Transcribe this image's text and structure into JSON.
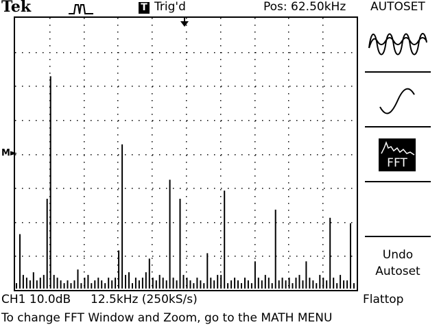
{
  "header": {
    "brand": "Tek",
    "trigger_icon": "T",
    "trigger_status": "Trig'd",
    "position": "Pos: 62.50kHz",
    "autoset_title": "AUTOSET"
  },
  "side_menu": {
    "option1_icon": "multi-cycle-sine-icon",
    "option2_icon": "single-cycle-sine-icon",
    "option3_icon": "fft-spectrum-icon",
    "fft_label": "FFT",
    "undo_line1": "Undo",
    "undo_line2": "Autoset"
  },
  "screen": {
    "marker": "M",
    "spectrum_bars": [
      [
        0,
        0.02
      ],
      [
        1,
        0.2
      ],
      [
        2,
        0.05
      ],
      [
        3,
        0.04
      ],
      [
        4,
        0.03
      ],
      [
        5,
        0.06
      ],
      [
        6,
        0.03
      ],
      [
        7,
        0.04
      ],
      [
        8,
        0.05
      ],
      [
        9,
        0.33
      ],
      [
        10,
        0.78
      ],
      [
        11,
        0.05
      ],
      [
        12,
        0.04
      ],
      [
        13,
        0.03
      ],
      [
        14,
        0.02
      ],
      [
        15,
        0.03
      ],
      [
        16,
        0.02
      ],
      [
        17,
        0.03
      ],
      [
        18,
        0.07
      ],
      [
        19,
        0.02
      ],
      [
        20,
        0.04
      ],
      [
        21,
        0.05
      ],
      [
        22,
        0.02
      ],
      [
        23,
        0.03
      ],
      [
        24,
        0.04
      ],
      [
        25,
        0.03
      ],
      [
        26,
        0.02
      ],
      [
        27,
        0.04
      ],
      [
        28,
        0.03
      ],
      [
        29,
        0.04
      ],
      [
        30,
        0.14
      ],
      [
        31,
        0.53
      ],
      [
        32,
        0.05
      ],
      [
        33,
        0.06
      ],
      [
        34,
        0.02
      ],
      [
        35,
        0.04
      ],
      [
        36,
        0.03
      ],
      [
        37,
        0.04
      ],
      [
        38,
        0.06
      ],
      [
        39,
        0.11
      ],
      [
        40,
        0.04
      ],
      [
        41,
        0.03
      ],
      [
        42,
        0.05
      ],
      [
        43,
        0.04
      ],
      [
        44,
        0.03
      ],
      [
        45,
        0.4
      ],
      [
        46,
        0.04
      ],
      [
        47,
        0.03
      ],
      [
        48,
        0.33
      ],
      [
        49,
        0.05
      ],
      [
        50,
        0.04
      ],
      [
        51,
        0.03
      ],
      [
        52,
        0.02
      ],
      [
        53,
        0.04
      ],
      [
        54,
        0.03
      ],
      [
        55,
        0.02
      ],
      [
        56,
        0.13
      ],
      [
        57,
        0.04
      ],
      [
        58,
        0.03
      ],
      [
        59,
        0.05
      ],
      [
        60,
        0.05
      ],
      [
        61,
        0.36
      ],
      [
        62,
        0.02
      ],
      [
        63,
        0.03
      ],
      [
        64,
        0.04
      ],
      [
        65,
        0.03
      ],
      [
        66,
        0.02
      ],
      [
        67,
        0.04
      ],
      [
        68,
        0.03
      ],
      [
        69,
        0.02
      ],
      [
        70,
        0.1
      ],
      [
        71,
        0.04
      ],
      [
        72,
        0.03
      ],
      [
        73,
        0.05
      ],
      [
        74,
        0.04
      ],
      [
        75,
        0.02
      ],
      [
        76,
        0.29
      ],
      [
        77,
        0.03
      ],
      [
        78,
        0.04
      ],
      [
        79,
        0.03
      ],
      [
        80,
        0.04
      ],
      [
        81,
        0.02
      ],
      [
        82,
        0.04
      ],
      [
        83,
        0.05
      ],
      [
        84,
        0.03
      ],
      [
        85,
        0.1
      ],
      [
        86,
        0.04
      ],
      [
        87,
        0.03
      ],
      [
        88,
        0.02
      ],
      [
        89,
        0.05
      ],
      [
        90,
        0.04
      ],
      [
        91,
        0.03
      ],
      [
        92,
        0.26
      ],
      [
        93,
        0.04
      ],
      [
        94,
        0.02
      ],
      [
        95,
        0.05
      ],
      [
        96,
        0.03
      ],
      [
        97,
        0.03
      ],
      [
        98,
        0.24
      ],
      [
        99,
        0.02
      ]
    ]
  },
  "footer": {
    "channel_scale": "CH1 10.0dB",
    "timebase": "12.5kHz (250kS/s)",
    "window": "Flattop",
    "message": "To change FFT Window and Zoom, go to the MATH MENU"
  }
}
